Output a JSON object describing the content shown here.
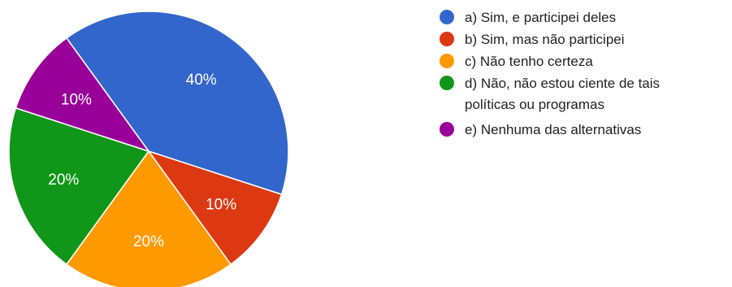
{
  "chart_data": {
    "type": "pie",
    "title": "",
    "start_angle_deg": -36,
    "slices": [
      {
        "label": "a) Sim, e participei deles",
        "value": 40,
        "display": "40%",
        "color": "#3366cc"
      },
      {
        "label": "b) Sim, mas não participei",
        "value": 10,
        "display": "10%",
        "color": "#dc3912"
      },
      {
        "label": "c) Não tenho certeza",
        "value": 20,
        "display": "20%",
        "color": "#ff9900"
      },
      {
        "label": "d) Não, não estou ciente de tais políticas ou programas",
        "value": 20,
        "display": "20%",
        "color": "#109618"
      },
      {
        "label": "e) Nenhuma das alternativas",
        "value": 10,
        "display": "10%",
        "color": "#990099"
      }
    ],
    "legend": {
      "position": "right",
      "entries": [
        {
          "lines": [
            "a) Sim, e participei deles"
          ]
        },
        {
          "lines": [
            "b) Sim, mas não participei"
          ]
        },
        {
          "lines": [
            "c) Não tenho certeza"
          ]
        },
        {
          "lines": [
            "d) Não, não estou ciente de tais",
            "políticas ou programas"
          ]
        },
        {
          "lines": [
            "e) Nenhuma das alternativas"
          ]
        }
      ]
    }
  }
}
